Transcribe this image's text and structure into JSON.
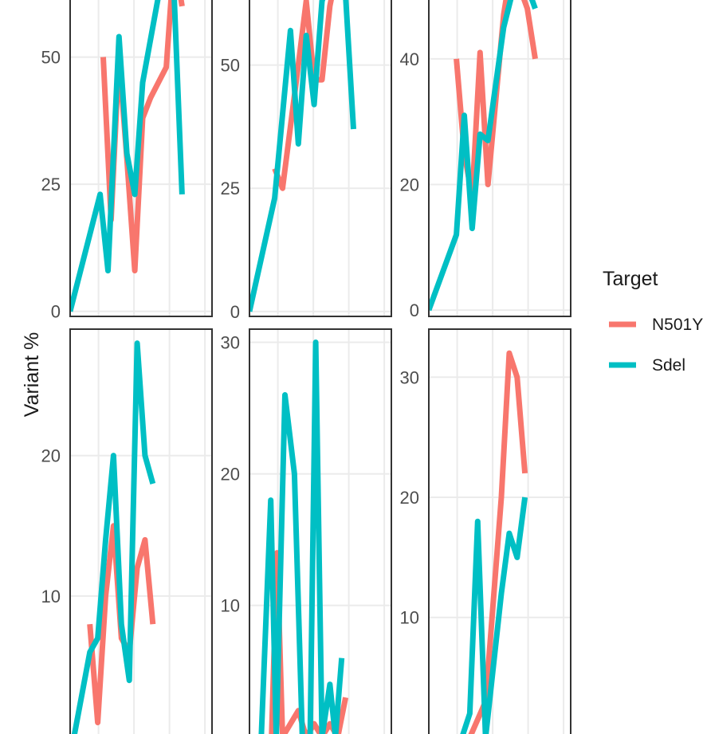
{
  "chart_data": {
    "type": "line",
    "ylabel": "Variant %",
    "legend": {
      "title": "Target",
      "position": "right",
      "entries": [
        {
          "name": "N501Y",
          "color": "#F8766D"
        },
        {
          "name": "Sdel",
          "color": "#00BFC4"
        }
      ]
    },
    "grid": true,
    "panels": [
      {
        "yticks": [
          "0",
          "25",
          "50"
        ],
        "ytick_values": [
          0,
          25,
          50
        ],
        "ylim": [
          -1,
          62
        ],
        "xlim": [
          0,
          18
        ],
        "series": [
          {
            "name": "N501Y",
            "x": [
              4.2,
              5.2,
              6.2,
              7.2,
              8.2,
              9.2,
              10.2,
              12.2,
              13.2,
              14.2
            ],
            "y": [
              50,
              18,
              50,
              30,
              8,
              38,
              42,
              48,
              70,
              60
            ]
          },
          {
            "name": "Sdel",
            "x": [
              0,
              3.8,
              4.8,
              6.2,
              7.2,
              8.2,
              9.2,
              11.2,
              12.2,
              13.2,
              14.2
            ],
            "y": [
              0,
              23,
              8,
              54,
              31,
              23,
              45,
              62,
              68,
              62,
              23
            ]
          }
        ]
      },
      {
        "yticks": [
          "0",
          "25",
          "50"
        ],
        "ytick_values": [
          0,
          25,
          50
        ],
        "ylim": [
          -1,
          64
        ],
        "xlim": [
          0,
          18
        ],
        "series": [
          {
            "name": "N501Y",
            "x": [
              3.2,
              4.2,
              6.2,
              7.2,
              8.2,
              9.2,
              10.2,
              11.2
            ],
            "y": [
              29,
              25,
              50,
              63,
              47,
              47,
              62,
              70
            ]
          },
          {
            "name": "Sdel",
            "x": [
              0,
              3.2,
              5.2,
              6.2,
              7.2,
              8.2,
              9.2,
              11.2,
              12.2,
              13.2
            ],
            "y": [
              0,
              23,
              57,
              34,
              56,
              42,
              63,
              72,
              64,
              37
            ]
          }
        ]
      },
      {
        "yticks": [
          "0",
          "20",
          "40"
        ],
        "ytick_values": [
          0,
          20,
          40
        ],
        "ylim": [
          -1,
          50
        ],
        "xlim": [
          0,
          18
        ],
        "series": [
          {
            "name": "N501Y",
            "x": [
              3.5,
              4.5,
              5.5,
              6.5,
              7.5,
              9.5,
              10.5,
              12.5,
              13.5
            ],
            "y": [
              40,
              25,
              18,
              41,
              20,
              47,
              55,
              48,
              40
            ]
          },
          {
            "name": "Sdel",
            "x": [
              0,
              3.5,
              4.5,
              5.5,
              6.5,
              7.5,
              9.5,
              11.5,
              13.5
            ],
            "y": [
              0,
              12,
              31,
              13,
              28,
              27,
              45,
              55,
              48
            ]
          }
        ]
      },
      {
        "yticks": [
          "10",
          "20"
        ],
        "ytick_values": [
          10,
          20
        ],
        "ylim": [
          -0.5,
          29
        ],
        "xlim": [
          0,
          18
        ],
        "series": [
          {
            "name": "N501Y",
            "x": [
              2.5,
              3.5,
              4.5,
              5.5,
              6.5,
              7.5,
              8.5,
              9.5,
              10.5
            ],
            "y": [
              8,
              1,
              10,
              15,
              7,
              6,
              12,
              14,
              8
            ]
          },
          {
            "name": "Sdel",
            "x": [
              0.5,
              2.5,
              3.5,
              4.5,
              5.5,
              6.5,
              7.5,
              8.5,
              9.5,
              10.5
            ],
            "y": [
              0,
              6,
              7,
              14,
              20,
              8,
              4,
              28,
              20,
              18
            ]
          }
        ]
      },
      {
        "yticks": [
          "10",
          "20",
          "30"
        ],
        "ytick_values": [
          10,
          20,
          30
        ],
        "ylim": [
          -0.5,
          31
        ],
        "xlim": [
          0,
          18
        ],
        "series": [
          {
            "name": "N501Y",
            "x": [
              2.8,
              3.5,
              4.2,
              6.2,
              7.2,
              8.2,
              9.2,
              10.2,
              11.2,
              12.2
            ],
            "y": [
              0,
              14,
              0,
              2,
              0,
              1,
              0,
              1,
              0,
              3
            ]
          },
          {
            "name": "Sdel",
            "x": [
              1.5,
              2.7,
              3.4,
              4.5,
              5.7,
              6.7,
              7.7,
              8.4,
              9.2,
              10.2,
              10.9,
              11.7
            ],
            "y": [
              0,
              18,
              0,
              26,
              20,
              0,
              0,
              30,
              0,
              4,
              0,
              6
            ]
          }
        ]
      },
      {
        "yticks": [
          "10",
          "20",
          "30"
        ],
        "ytick_values": [
          10,
          20,
          30
        ],
        "ylim": [
          -0.5,
          34
        ],
        "xlim": [
          0,
          18
        ],
        "series": [
          {
            "name": "N501Y",
            "x": [
              5.2,
              7.2,
              9.2,
              10.2,
              11.2,
              12.2
            ],
            "y": [
              0,
              3,
              20,
              32,
              30,
              22
            ]
          },
          {
            "name": "Sdel",
            "x": [
              4.2,
              5.2,
              6.2,
              7.2,
              8.2,
              9.2,
              10.2,
              11.2,
              12.2
            ],
            "y": [
              0,
              2,
              18,
              0,
              6,
              12,
              17,
              15,
              20
            ]
          }
        ]
      }
    ]
  }
}
